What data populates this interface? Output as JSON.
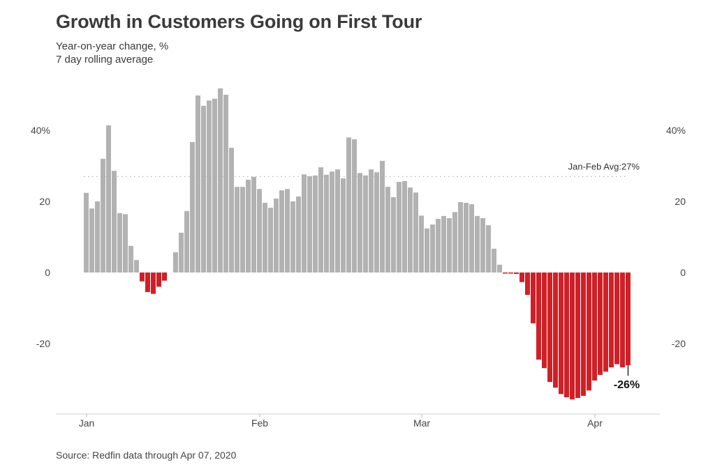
{
  "chart_data": {
    "type": "bar",
    "title": "Growth in Customers Going on First Tour",
    "subtitle_lines": [
      "Year-on-year change, %",
      "7 day rolling average"
    ],
    "source": "Source: Redfin data through Apr 07, 2020",
    "xlabel": "",
    "ylabel": "Year-on-year change, %",
    "x_start_date": "2020-01-01",
    "x_end_date": "2020-04-07",
    "x_tick_labels": [
      {
        "label": "Jan",
        "day_index": 0
      },
      {
        "label": "Feb",
        "day_index": 31
      },
      {
        "label": "Mar",
        "day_index": 60
      },
      {
        "label": "Apr",
        "day_index": 91
      }
    ],
    "y_ticks": [
      {
        "value": 40,
        "label": "40%"
      },
      {
        "value": 20,
        "label": "20"
      },
      {
        "value": 0,
        "label": "0"
      },
      {
        "value": -20,
        "label": "-20"
      }
    ],
    "ylim": [
      -40,
      54
    ],
    "grid": false,
    "reference_line": {
      "value": 27,
      "label": "Jan-Feb Avg:27%"
    },
    "end_annotation": {
      "label": "-26%",
      "value": -26
    },
    "colors": {
      "positive": "#b2b2b2",
      "negative": "#cf2027",
      "reference": "#aaaaaa",
      "axis": "#cccccc"
    },
    "values": [
      22.4,
      18.0,
      20.0,
      32.0,
      41.4,
      28.6,
      16.7,
      16.4,
      7.5,
      3.5,
      -2.5,
      -5.5,
      -6.0,
      -4.0,
      -2.3,
      0,
      5.7,
      11.2,
      17.3,
      36.7,
      49.8,
      46.9,
      48.4,
      48.9,
      51.8,
      50.0,
      35.1,
      24.1,
      24.1,
      26.1,
      26.9,
      23.5,
      19.6,
      18.2,
      20.8,
      23.1,
      23.5,
      20.0,
      21.4,
      27.6,
      27.1,
      27.3,
      29.6,
      27.5,
      28.4,
      29.0,
      26.5,
      38.0,
      37.5,
      28.0,
      27.3,
      29.0,
      28.2,
      31.4,
      24.1,
      21.2,
      25.5,
      25.7,
      23.9,
      22.5,
      16.0,
      12.4,
      13.5,
      15.1,
      15.9,
      15.3,
      17.0,
      19.8,
      19.6,
      19.2,
      15.9,
      15.3,
      13.3,
      6.7,
      2.2,
      -0.3,
      -0.3,
      -0.4,
      -2.7,
      -6.3,
      -14.3,
      -24.5,
      -26.9,
      -30.8,
      -32.4,
      -34.2,
      -35.1,
      -35.7,
      -35.3,
      -34.7,
      -33.2,
      -30.4,
      -28.8,
      -27.9,
      -26.7,
      -25.8,
      -26.7,
      -26.1
    ]
  }
}
